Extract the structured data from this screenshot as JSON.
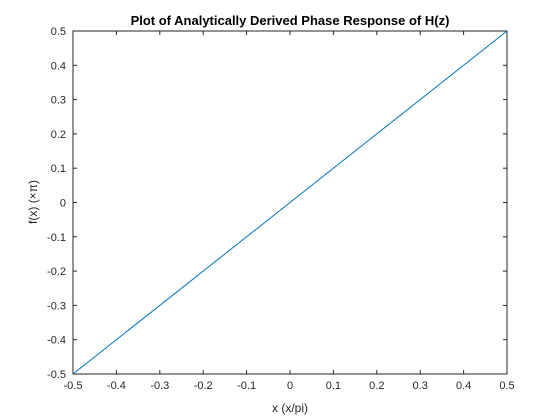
{
  "chart_data": {
    "type": "line",
    "title": "Plot of Analytically Derived Phase Response of H(z)",
    "xlabel": "x (x/pi)",
    "ylabel": "f(x) (×π)",
    "xlim": [
      -0.5,
      0.5
    ],
    "ylim": [
      -0.5,
      0.5
    ],
    "xticks": [
      -0.5,
      -0.4,
      -0.3,
      -0.2,
      -0.1,
      0,
      0.1,
      0.2,
      0.3,
      0.4,
      0.5
    ],
    "xtick_labels": [
      "-0.5",
      "-0.4",
      "-0.3",
      "-0.2",
      "-0.1",
      "0",
      "0.1",
      "0.2",
      "0.3",
      "0.4",
      "0.5"
    ],
    "yticks": [
      -0.5,
      -0.4,
      -0.3,
      -0.2,
      -0.1,
      0,
      0.1,
      0.2,
      0.3,
      0.4,
      0.5
    ],
    "ytick_labels": [
      "-0.5",
      "-0.4",
      "-0.3",
      "-0.2",
      "-0.1",
      "0",
      "0.1",
      "0.2",
      "0.3",
      "0.4",
      "0.5"
    ],
    "grid": false,
    "box": true,
    "series": [
      {
        "color": "#0072bd",
        "x": [
          -0.5,
          0.5
        ],
        "y": [
          -0.5,
          0.5
        ]
      }
    ]
  }
}
